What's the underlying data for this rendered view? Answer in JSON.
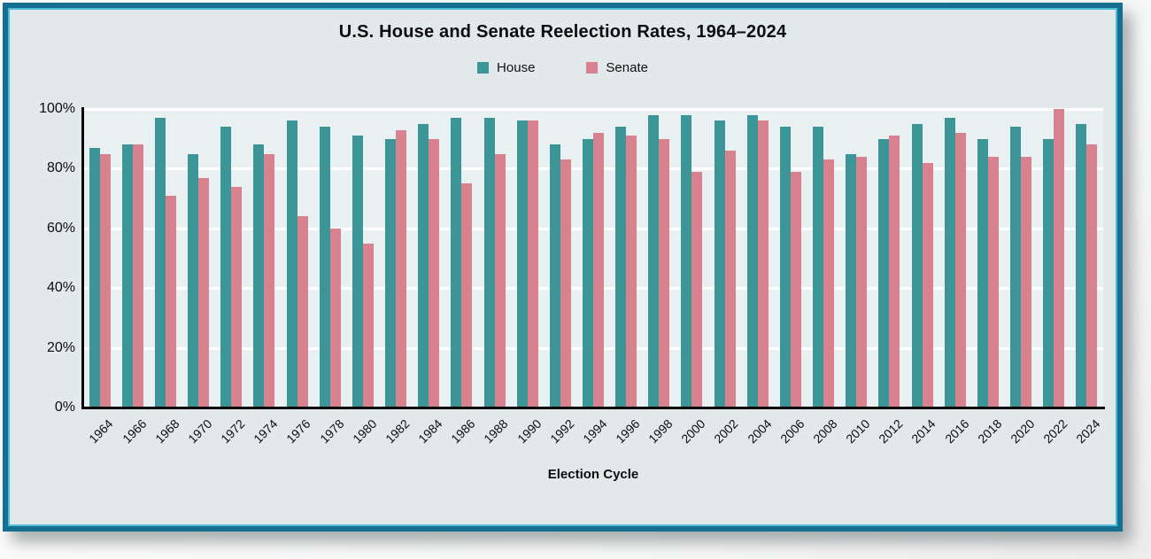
{
  "title": "U.S. House and Senate Reelection Rates, 1964–2024",
  "legend": {
    "items": [
      {
        "label": "House",
        "color": "#3c9596"
      },
      {
        "label": "Senate",
        "color": "#d8818f"
      }
    ]
  },
  "xaxis_title": "Election Cycle",
  "colors": {
    "house": "#3c9596",
    "senate": "#d8818f",
    "card_background": "#e1e9eb",
    "plot_background": "#e9f0f1",
    "border": "#146f91",
    "border_inner_line": "#52bcd8",
    "gridline": "#ffffff",
    "axis": "#000000",
    "text": "#0d0d0d"
  },
  "chart_data": {
    "type": "bar",
    "title": "U.S. House and Senate Reelection Rates, 1964–2024",
    "xlabel": "Election Cycle",
    "ylabel": "",
    "ylim": [
      0,
      100
    ],
    "yticks": [
      "0%",
      "20%",
      "40%",
      "60%",
      "80%",
      "100%"
    ],
    "grid": true,
    "legend_position": "top-center",
    "categories": [
      "1964",
      "1966",
      "1968",
      "1970",
      "1972",
      "1974",
      "1976",
      "1978",
      "1980",
      "1982",
      "1984",
      "1986",
      "1988",
      "1990",
      "1992",
      "1994",
      "1996",
      "1998",
      "2000",
      "2002",
      "2004",
      "2006",
      "2008",
      "2010",
      "2012",
      "2014",
      "2016",
      "2018",
      "2020",
      "2022",
      "2024"
    ],
    "series": [
      {
        "name": "House",
        "color": "#3c9596",
        "values": [
          87,
          88,
          97,
          85,
          94,
          88,
          96,
          94,
          91,
          90,
          95,
          97,
          97,
          96,
          88,
          90,
          94,
          98,
          98,
          96,
          98,
          94,
          94,
          85,
          90,
          95,
          97,
          90,
          94,
          90,
          95
        ]
      },
      {
        "name": "Senate",
        "color": "#d8818f",
        "values": [
          85,
          88,
          71,
          77,
          74,
          85,
          64,
          60,
          55,
          93,
          90,
          75,
          85,
          96,
          83,
          92,
          91,
          90,
          79,
          86,
          96,
          79,
          83,
          84,
          91,
          82,
          92,
          84,
          84,
          100,
          88
        ]
      }
    ]
  }
}
